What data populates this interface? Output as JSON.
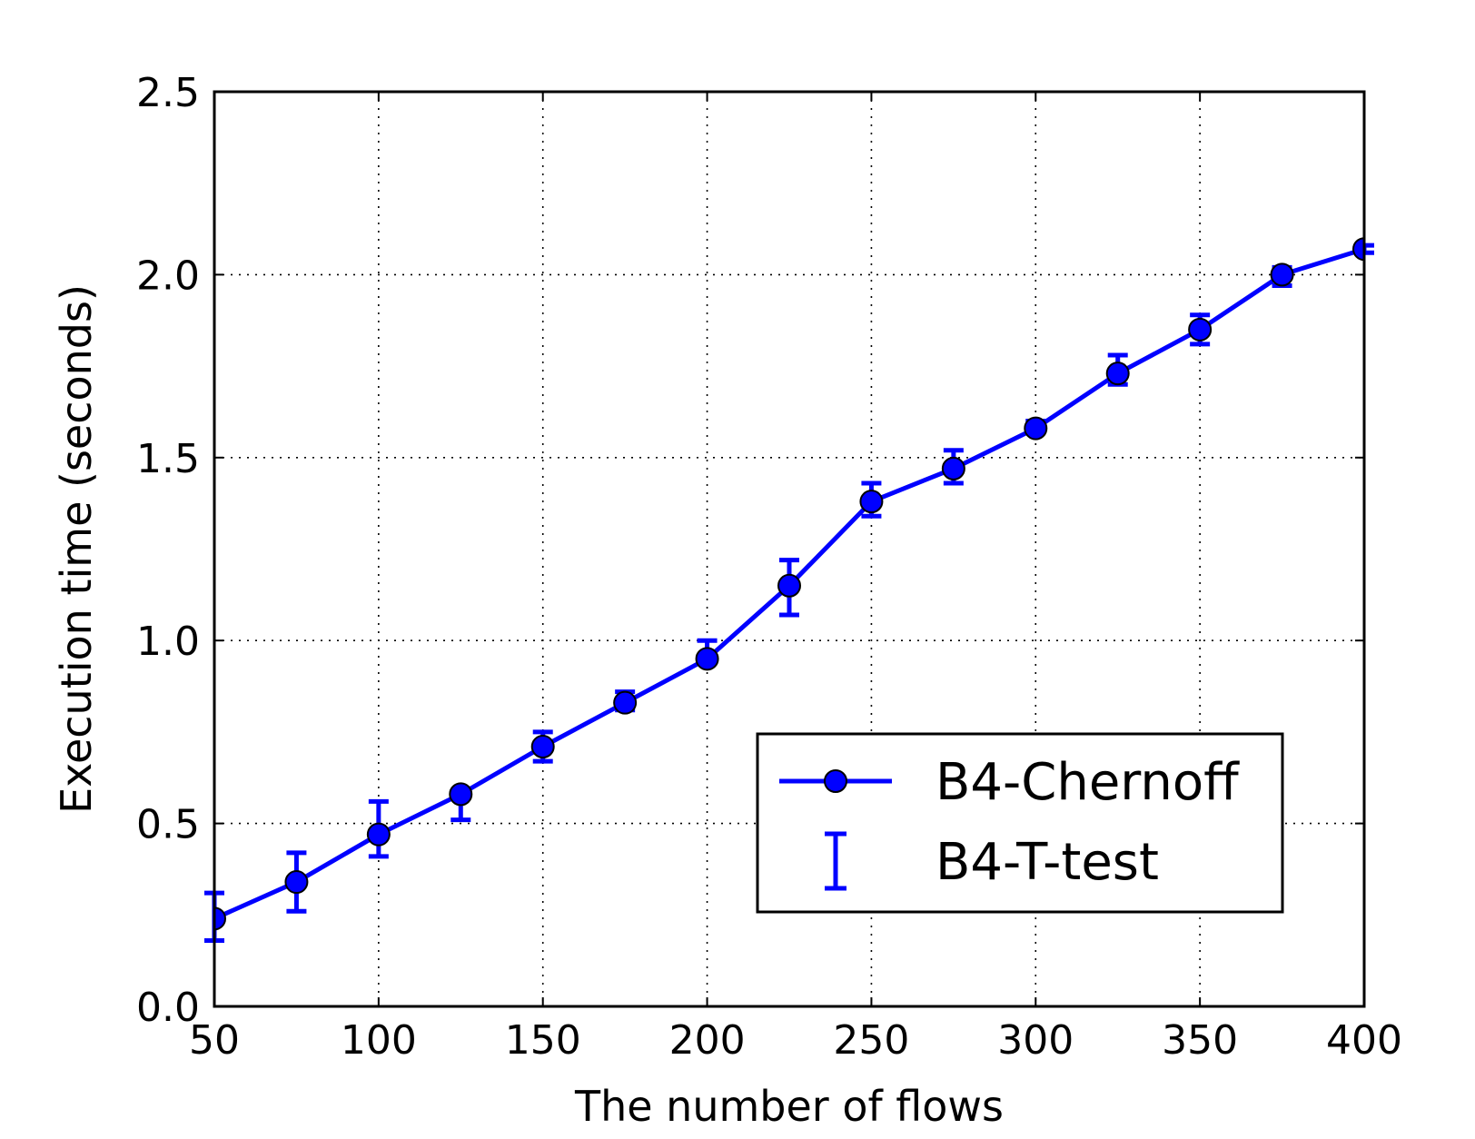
{
  "chart_data": {
    "type": "line",
    "title": "",
    "xlabel": "The number of flows",
    "ylabel": "Execution time (seconds)",
    "xlim": [
      50,
      400
    ],
    "ylim": [
      0.0,
      2.5
    ],
    "xticks": [
      "50",
      "100",
      "150",
      "200",
      "250",
      "300",
      "350",
      "400"
    ],
    "yticks": [
      "0.0",
      "0.5",
      "1.0",
      "1.5",
      "2.0",
      "2.5"
    ],
    "grid": true,
    "legend_position": "lower-right",
    "series": [
      {
        "name": "B4-Chernoff",
        "style": "line-with-circle-markers",
        "color": "#0000ff",
        "x": [
          50,
          75,
          100,
          125,
          150,
          175,
          200,
          225,
          250,
          275,
          300,
          325,
          350,
          375,
          400
        ],
        "y": [
          0.24,
          0.34,
          0.47,
          0.58,
          0.71,
          0.83,
          0.95,
          1.15,
          1.38,
          1.47,
          1.58,
          1.73,
          1.85,
          2.0,
          2.07
        ]
      },
      {
        "name": "B4-T-test",
        "style": "error-bars",
        "color": "#0000ff",
        "x": [
          50,
          75,
          100,
          125,
          150,
          175,
          200,
          225,
          250,
          275,
          300,
          325,
          350,
          375,
          400
        ],
        "y": [
          0.24,
          0.34,
          0.49,
          0.55,
          0.71,
          0.83,
          0.96,
          1.15,
          1.38,
          1.47,
          1.58,
          1.74,
          1.85,
          1.99,
          2.07
        ],
        "lower": [
          0.18,
          0.26,
          0.41,
          0.51,
          0.67,
          0.81,
          0.94,
          1.07,
          1.34,
          1.43,
          1.57,
          1.7,
          1.81,
          1.97,
          2.06
        ],
        "upper": [
          0.31,
          0.42,
          0.56,
          0.59,
          0.75,
          0.86,
          1.0,
          1.22,
          1.43,
          1.52,
          1.6,
          1.78,
          1.89,
          2.02,
          2.08
        ]
      }
    ]
  }
}
